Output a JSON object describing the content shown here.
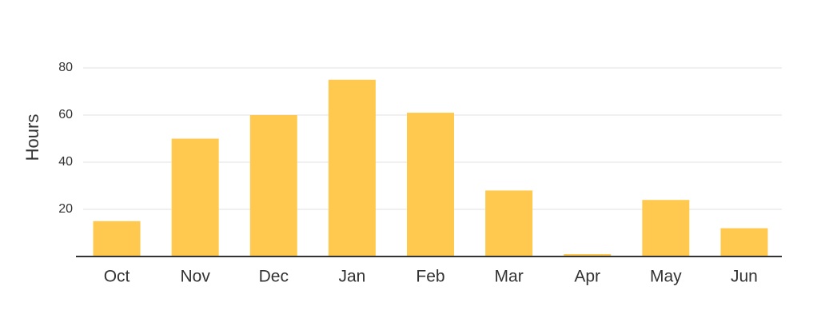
{
  "chart_data": {
    "type": "bar",
    "title": "",
    "xlabel": "",
    "ylabel": "Hours",
    "categories": [
      "Oct",
      "Nov",
      "Dec",
      "Jan",
      "Feb",
      "Mar",
      "Apr",
      "May",
      "Jun"
    ],
    "values": [
      15,
      50,
      60,
      75,
      61,
      28,
      1,
      24,
      12
    ],
    "ylim": [
      0,
      80
    ],
    "yticks": [
      20,
      40,
      60,
      80
    ],
    "grid": true,
    "legend": "none",
    "colors": {
      "bar": "#FFC94F",
      "grid": "#EBEBEB",
      "axis": "#333333",
      "text": "#333333"
    }
  }
}
